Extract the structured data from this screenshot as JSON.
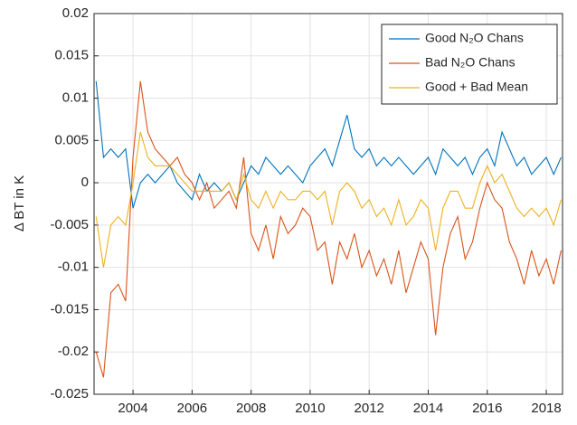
{
  "chart_data": {
    "type": "line",
    "y_label": "Δ BT in K",
    "x": [
      2002.75,
      2003.0,
      2003.25,
      2003.5,
      2003.75,
      2004.0,
      2004.25,
      2004.5,
      2004.75,
      2005.0,
      2005.25,
      2005.5,
      2005.75,
      2006.0,
      2006.25,
      2006.5,
      2006.75,
      2007.0,
      2007.25,
      2007.5,
      2007.75,
      2008.0,
      2008.25,
      2008.5,
      2008.75,
      2009.0,
      2009.25,
      2009.5,
      2009.75,
      2010.0,
      2010.25,
      2010.5,
      2010.75,
      2011.0,
      2011.25,
      2011.5,
      2011.75,
      2012.0,
      2012.25,
      2012.5,
      2012.75,
      2013.0,
      2013.25,
      2013.5,
      2013.75,
      2014.0,
      2014.25,
      2014.5,
      2014.75,
      2015.0,
      2015.25,
      2015.5,
      2015.75,
      2016.0,
      2016.25,
      2016.5,
      2016.75,
      2017.0,
      2017.25,
      2017.5,
      2017.75,
      2018.0,
      2018.25,
      2018.5
    ],
    "series": [
      {
        "name": "Good N₂O Chans",
        "color": "#0072bd",
        "values": [
          0.012,
          0.003,
          0.004,
          0.003,
          0.004,
          -0.003,
          0.0,
          0.001,
          0.0,
          0.001,
          0.002,
          0.0,
          -0.001,
          -0.002,
          0.001,
          -0.001,
          0.0,
          -0.001,
          0.0,
          -0.002,
          0.0,
          0.002,
          0.001,
          0.003,
          0.002,
          0.001,
          0.002,
          0.001,
          0.0,
          0.002,
          0.003,
          0.004,
          0.002,
          0.005,
          0.008,
          0.004,
          0.003,
          0.004,
          0.002,
          0.003,
          0.002,
          0.003,
          0.002,
          0.001,
          0.002,
          0.003,
          0.001,
          0.004,
          0.003,
          0.002,
          0.003,
          0.001,
          0.003,
          0.004,
          0.002,
          0.006,
          0.004,
          0.002,
          0.003,
          0.001,
          0.002,
          0.003,
          0.001,
          0.003
        ]
      },
      {
        "name": "Bad N₂O Chans",
        "color": "#d95319",
        "values": [
          -0.02,
          -0.023,
          -0.013,
          -0.012,
          -0.014,
          0.003,
          0.012,
          0.006,
          0.004,
          0.003,
          0.002,
          0.003,
          0.001,
          0.0,
          -0.002,
          0.0,
          -0.003,
          -0.002,
          -0.001,
          -0.003,
          0.003,
          -0.006,
          -0.008,
          -0.005,
          -0.009,
          -0.004,
          -0.006,
          -0.005,
          -0.003,
          -0.004,
          -0.008,
          -0.007,
          -0.012,
          -0.007,
          -0.009,
          -0.006,
          -0.01,
          -0.008,
          -0.011,
          -0.009,
          -0.012,
          -0.008,
          -0.013,
          -0.01,
          -0.007,
          -0.009,
          -0.018,
          -0.01,
          -0.006,
          -0.004,
          -0.009,
          -0.007,
          -0.003,
          0.0,
          -0.002,
          -0.003,
          -0.007,
          -0.009,
          -0.012,
          -0.008,
          -0.011,
          -0.009,
          -0.012,
          -0.008
        ]
      },
      {
        "name": "Good + Bad Mean",
        "color": "#edb120",
        "values": [
          -0.004,
          -0.01,
          -0.005,
          -0.004,
          -0.005,
          0.0,
          0.006,
          0.003,
          0.002,
          0.002,
          0.002,
          0.001,
          0.0,
          -0.001,
          -0.001,
          -0.001,
          -0.001,
          -0.001,
          0.0,
          -0.002,
          0.001,
          -0.002,
          -0.003,
          -0.001,
          -0.003,
          -0.001,
          -0.002,
          -0.002,
          -0.001,
          -0.001,
          -0.002,
          -0.001,
          -0.005,
          -0.001,
          0.0,
          -0.001,
          -0.003,
          -0.002,
          -0.004,
          -0.003,
          -0.005,
          -0.002,
          -0.005,
          -0.004,
          -0.002,
          -0.003,
          -0.008,
          -0.003,
          -0.001,
          -0.001,
          -0.003,
          -0.003,
          0.0,
          0.002,
          0.0,
          0.001,
          -0.001,
          -0.003,
          -0.004,
          -0.003,
          -0.004,
          -0.003,
          -0.005,
          -0.002
        ]
      }
    ],
    "xlim": [
      2002.68,
      2018.55
    ],
    "xticks": [
      2004,
      2006,
      2008,
      2010,
      2012,
      2014,
      2016,
      2018
    ],
    "ylim": [
      -0.025,
      0.02
    ],
    "yticks": [
      -0.025,
      -0.02,
      -0.015,
      -0.01,
      -0.005,
      0,
      0.005,
      0.01,
      0.015,
      0.02
    ],
    "grid": true,
    "legend": "upper right"
  }
}
